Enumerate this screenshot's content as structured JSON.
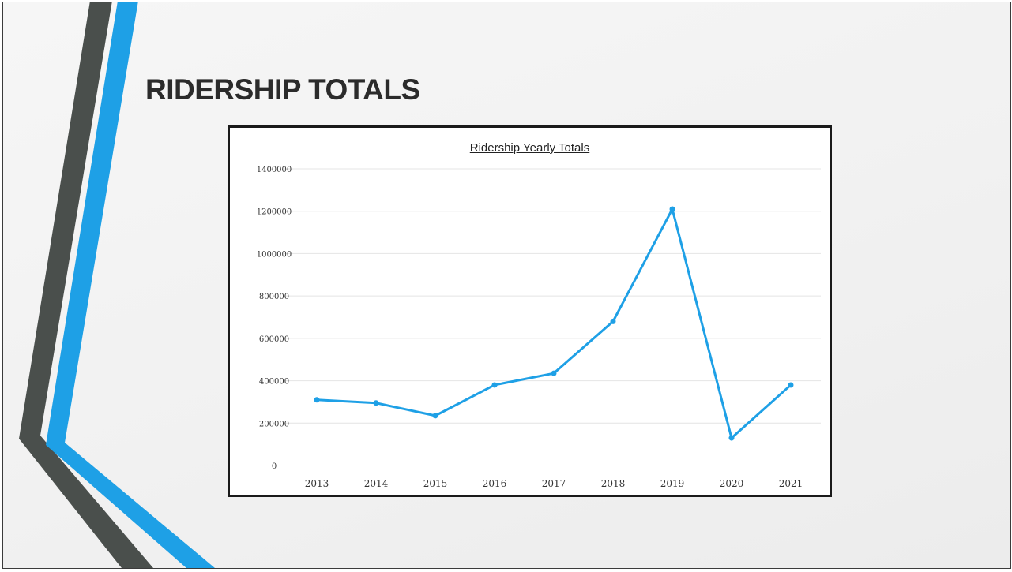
{
  "slide": {
    "title": "RIDERSHIP TOTALS",
    "colors": {
      "accent_blue": "#1ea0e6",
      "accent_dark": "#4a4f4c"
    }
  },
  "chart_data": {
    "type": "line",
    "title": "Ridership Yearly Totals",
    "xlabel": "",
    "ylabel": "",
    "categories": [
      "2013",
      "2014",
      "2015",
      "2016",
      "2017",
      "2018",
      "2019",
      "2020",
      "2021"
    ],
    "series": [
      {
        "values": [
          310000,
          295000,
          235000,
          380000,
          435000,
          680000,
          1210000,
          130000,
          380000
        ],
        "color": "#1ea0e6"
      }
    ],
    "yticks": [
      "0",
      "200000",
      "400000",
      "600000",
      "800000",
      "1000000",
      "1200000",
      "1400000"
    ],
    "ylim": [
      0,
      1400000
    ],
    "grid": true,
    "legend": "none"
  }
}
